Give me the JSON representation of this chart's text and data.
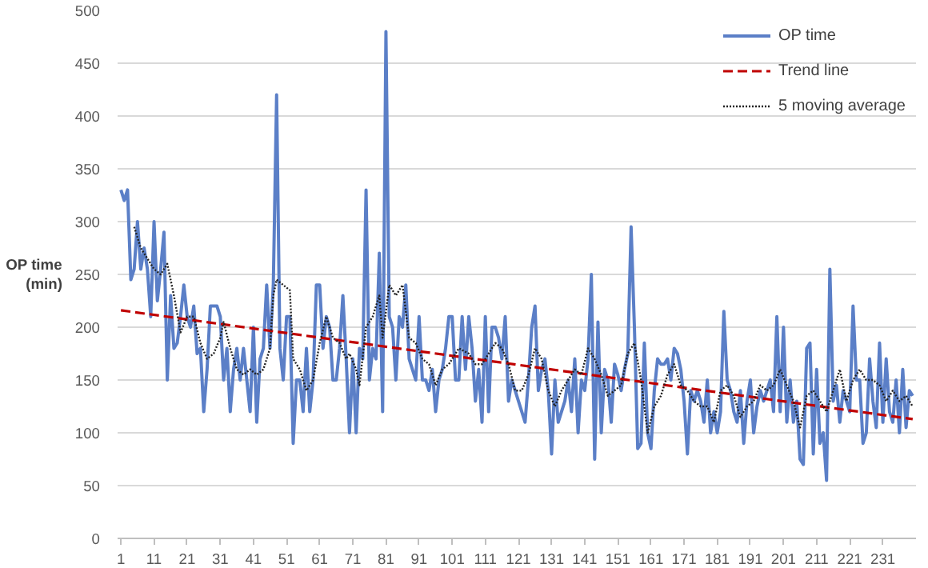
{
  "chart_data": {
    "type": "line",
    "ylabel": "OP time\n(min)",
    "xlim": [
      0,
      241
    ],
    "xticks": [
      1,
      11,
      21,
      31,
      41,
      51,
      61,
      71,
      81,
      91,
      101,
      111,
      121,
      131,
      141,
      151,
      161,
      171,
      181,
      191,
      201,
      211,
      221,
      231
    ],
    "ylim": [
      0,
      500
    ],
    "yticks": [
      0,
      50,
      100,
      150,
      200,
      250,
      300,
      350,
      400,
      450,
      500
    ],
    "grid": "y",
    "legend": "top right",
    "marker": "none",
    "series": [
      {
        "name": "OP time",
        "color": "#5b7fc7",
        "line_style": "solid",
        "x": [
          1,
          2,
          3,
          4,
          5,
          6,
          7,
          8,
          9,
          10,
          11,
          12,
          13,
          14,
          15,
          16,
          17,
          18,
          19,
          20,
          21,
          22,
          23,
          24,
          25,
          26,
          27,
          28,
          29,
          30,
          31,
          32,
          33,
          34,
          35,
          36,
          37,
          38,
          39,
          40,
          41,
          42,
          43,
          44,
          45,
          46,
          47,
          48,
          49,
          50,
          51,
          52,
          53,
          54,
          55,
          56,
          57,
          58,
          59,
          60,
          61,
          62,
          63,
          64,
          65,
          66,
          67,
          68,
          69,
          70,
          71,
          72,
          73,
          74,
          75,
          76,
          77,
          78,
          79,
          80,
          81,
          82,
          83,
          84,
          85,
          86,
          87,
          88,
          89,
          90,
          91,
          92,
          93,
          94,
          95,
          96,
          97,
          98,
          99,
          100,
          101,
          102,
          103,
          104,
          105,
          106,
          107,
          108,
          109,
          110,
          111,
          112,
          113,
          114,
          115,
          116,
          117,
          118,
          119,
          120,
          121,
          122,
          123,
          124,
          125,
          126,
          127,
          128,
          129,
          130,
          131,
          132,
          133,
          134,
          135,
          136,
          137,
          138,
          139,
          140,
          141,
          142,
          143,
          144,
          145,
          146,
          147,
          148,
          149,
          150,
          151,
          152,
          153,
          154,
          155,
          156,
          157,
          158,
          159,
          160,
          161,
          162,
          163,
          164,
          165,
          166,
          167,
          168,
          169,
          170,
          171,
          172,
          173,
          174,
          175,
          176,
          177,
          178,
          179,
          180,
          181,
          182,
          183,
          184,
          185,
          186,
          187,
          188,
          189,
          190,
          191,
          192,
          193,
          194,
          195,
          196,
          197,
          198,
          199,
          200,
          201,
          202,
          203,
          204,
          205,
          206,
          207,
          208,
          209,
          210,
          211,
          212,
          213,
          214,
          215,
          216,
          217,
          218,
          219,
          220,
          221,
          222,
          223,
          224,
          225,
          226,
          227,
          228,
          229,
          230,
          231,
          232,
          233,
          234,
          235,
          236,
          237,
          238,
          239,
          240
        ],
        "values": [
          330,
          320,
          330,
          245,
          255,
          300,
          255,
          275,
          255,
          210,
          300,
          225,
          255,
          290,
          150,
          230,
          180,
          185,
          210,
          240,
          210,
          200,
          220,
          175,
          180,
          120,
          160,
          220,
          220,
          220,
          210,
          150,
          180,
          120,
          160,
          180,
          150,
          180,
          150,
          120,
          200,
          110,
          170,
          180,
          240,
          180,
          240,
          420,
          180,
          150,
          210,
          210,
          90,
          150,
          150,
          120,
          180,
          120,
          150,
          240,
          240,
          180,
          210,
          200,
          150,
          150,
          180,
          230,
          170,
          100,
          170,
          100,
          180,
          170,
          330,
          150,
          180,
          170,
          270,
          120,
          480,
          210,
          200,
          150,
          210,
          200,
          240,
          170,
          160,
          150,
          210,
          150,
          150,
          140,
          160,
          120,
          150,
          160,
          180,
          210,
          210,
          150,
          150,
          210,
          160,
          210,
          180,
          130,
          160,
          110,
          210,
          120,
          200,
          200,
          190,
          170,
          210,
          130,
          150,
          140,
          130,
          120,
          110,
          150,
          200,
          220,
          140,
          160,
          170,
          140,
          80,
          150,
          110,
          120,
          130,
          150,
          120,
          170,
          100,
          150,
          140,
          170,
          250,
          75,
          205,
          100,
          160,
          150,
          110,
          165,
          155,
          140,
          160,
          175,
          295,
          200,
          85,
          90,
          185,
          100,
          85,
          140,
          170,
          165,
          165,
          170,
          150,
          180,
          175,
          160,
          130,
          80,
          140,
          130,
          140,
          130,
          110,
          150,
          100,
          120,
          100,
          120,
          215,
          150,
          140,
          120,
          110,
          140,
          90,
          130,
          150,
          100,
          125,
          140,
          130,
          140,
          150,
          120,
          210,
          120,
          200,
          110,
          150,
          110,
          130,
          75,
          70,
          180,
          185,
          80,
          160,
          90,
          100,
          55,
          255,
          130,
          145,
          110,
          140,
          130,
          120,
          220,
          150,
          150,
          90,
          100,
          170,
          130,
          105,
          185,
          110,
          170,
          120,
          110,
          150,
          100,
          160,
          105,
          140,
          135
        ]
      },
      {
        "name": "Trend line",
        "color": "#c00000",
        "line_style": "dashed",
        "x": [
          1,
          240
        ],
        "values": [
          216,
          113
        ]
      },
      {
        "name": "5 moving average",
        "color": "#222222",
        "line_style": "dotted",
        "x": [
          5,
          7,
          9,
          11,
          13,
          15,
          17,
          19,
          21,
          23,
          25,
          27,
          29,
          31,
          32,
          34,
          36,
          38,
          40,
          42,
          44,
          46,
          47,
          48,
          50,
          52,
          53,
          55,
          57,
          59,
          61,
          63,
          65,
          67,
          69,
          70,
          72,
          73,
          75,
          77,
          79,
          80,
          82,
          84,
          86,
          88,
          90,
          92,
          94,
          96,
          98,
          100,
          103,
          106,
          108,
          110,
          112,
          114,
          116,
          118,
          120,
          122,
          124,
          126,
          128,
          130,
          132,
          134,
          136,
          138,
          140,
          142,
          144,
          146,
          148,
          150,
          152,
          154,
          156,
          158,
          160,
          162,
          164,
          166,
          168,
          170,
          172,
          174,
          176,
          178,
          180,
          182,
          184,
          186,
          188,
          190,
          192,
          194,
          196,
          198,
          200,
          202,
          204,
          206,
          208,
          210,
          212,
          214,
          216,
          218,
          220,
          222,
          224,
          226,
          228,
          230,
          232,
          234,
          236,
          238,
          240
        ],
        "values": [
          295,
          275,
          265,
          255,
          250,
          260,
          230,
          195,
          210,
          210,
          185,
          170,
          175,
          190,
          205,
          180,
          160,
          155,
          160,
          155,
          160,
          180,
          230,
          245,
          240,
          235,
          170,
          160,
          140,
          150,
          185,
          210,
          190,
          185,
          170,
          175,
          160,
          145,
          200,
          210,
          230,
          190,
          240,
          230,
          240,
          190,
          185,
          170,
          165,
          145,
          160,
          165,
          180,
          175,
          165,
          165,
          175,
          185,
          180,
          165,
          140,
          140,
          155,
          180,
          170,
          140,
          125,
          140,
          150,
          160,
          155,
          180,
          170,
          155,
          135,
          140,
          145,
          175,
          185,
          150,
          100,
          125,
          135,
          155,
          165,
          145,
          140,
          130,
          125,
          125,
          110,
          140,
          145,
          135,
          115,
          125,
          130,
          145,
          140,
          145,
          160,
          145,
          130,
          105,
          135,
          140,
          130,
          120,
          140,
          160,
          130,
          150,
          160,
          150,
          150,
          145,
          130,
          140,
          130,
          135,
          125
        ]
      }
    ]
  }
}
